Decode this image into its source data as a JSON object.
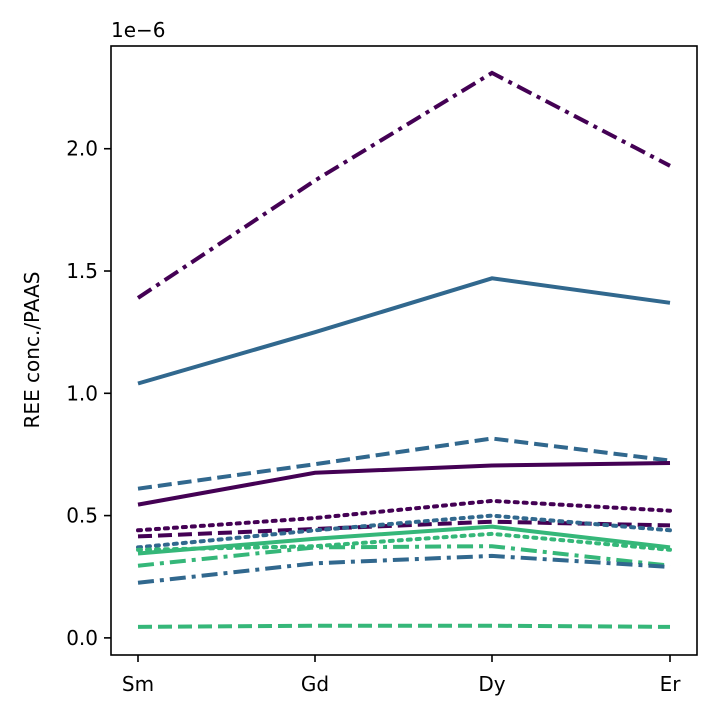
{
  "chart_data": {
    "type": "line",
    "categories": [
      "Sm",
      "Gd",
      "Dy",
      "Er"
    ],
    "ylabel": "REE conc./PAAS",
    "y_offset_label": "1e−6",
    "ylim": [
      -0.07,
      2.42
    ],
    "y_ticks": [
      0.0,
      0.5,
      1.0,
      1.5,
      2.0
    ],
    "y_tick_labels": [
      "0.0",
      "0.5",
      "1.0",
      "1.5",
      "2.0"
    ],
    "grid": false,
    "series": [
      {
        "color": "#440154",
        "dash": "dashdot",
        "values": [
          1.39,
          1.87,
          2.31,
          1.93
        ]
      },
      {
        "color": "#31688e",
        "dash": "solid",
        "values": [
          1.04,
          1.25,
          1.47,
          1.37
        ]
      },
      {
        "color": "#31688e",
        "dash": "dashed",
        "values": [
          0.61,
          0.71,
          0.815,
          0.725
        ]
      },
      {
        "color": "#440154",
        "dash": "solid",
        "values": [
          0.545,
          0.675,
          0.705,
          0.715
        ]
      },
      {
        "color": "#440154",
        "dash": "dotted",
        "values": [
          0.44,
          0.49,
          0.56,
          0.52
        ]
      },
      {
        "color": "#440154",
        "dash": "dashed",
        "values": [
          0.415,
          0.445,
          0.475,
          0.46
        ]
      },
      {
        "color": "#31688e",
        "dash": "dotted",
        "values": [
          0.37,
          0.44,
          0.5,
          0.44
        ]
      },
      {
        "color": "#35b779",
        "dash": "solid",
        "values": [
          0.345,
          0.405,
          0.455,
          0.37
        ]
      },
      {
        "color": "#35b779",
        "dash": "dotted",
        "values": [
          0.36,
          0.375,
          0.425,
          0.36
        ]
      },
      {
        "color": "#35b779",
        "dash": "dashdot",
        "values": [
          0.295,
          0.37,
          0.375,
          0.295
        ]
      },
      {
        "color": "#31688e",
        "dash": "dashdot",
        "values": [
          0.225,
          0.305,
          0.335,
          0.29
        ]
      },
      {
        "color": "#35b779",
        "dash": "dashed",
        "values": [
          0.045,
          0.05,
          0.05,
          0.045
        ]
      }
    ]
  }
}
